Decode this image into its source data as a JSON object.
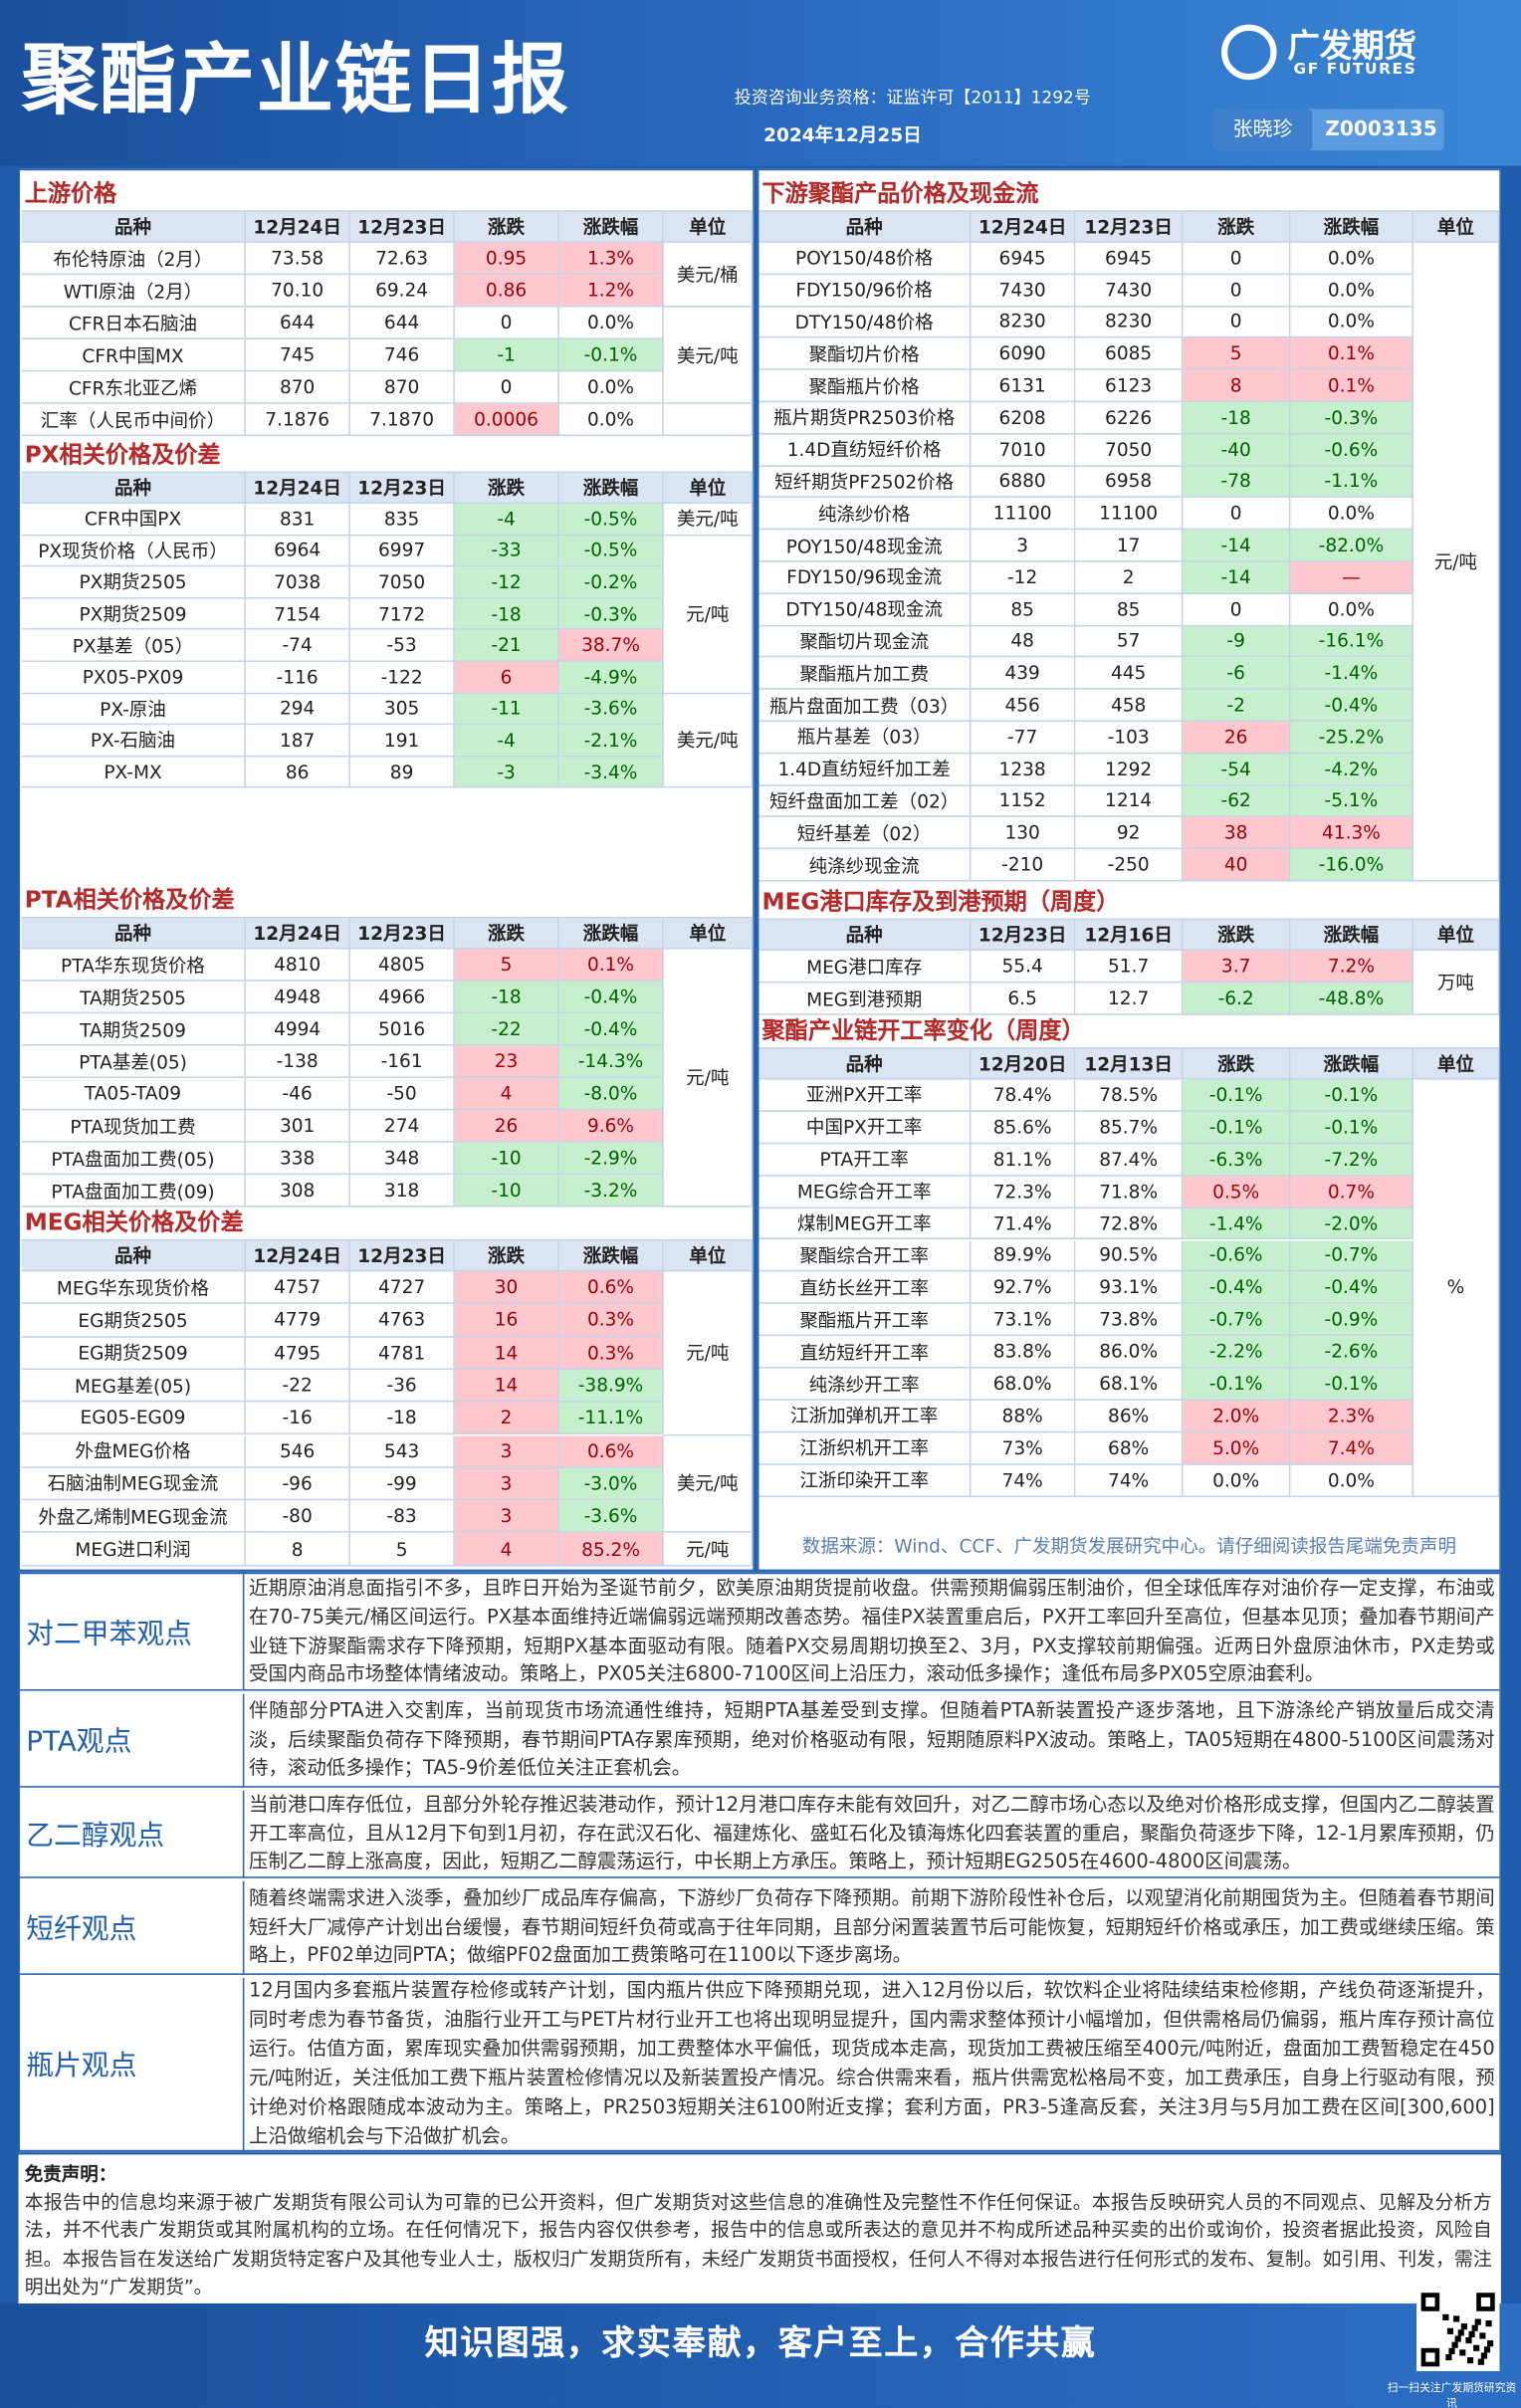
{
  "header": {
    "title": "聚酯产业链日报",
    "license": "投资咨询业务资格：证监许可【2011】1292号",
    "date": "2024年12月25日",
    "analyst": "张晓珍",
    "analyst_id": "Z0003135",
    "logo": "广发期货",
    "logo_en": "GF FUTURES"
  },
  "left": [
    {
      "title": "上游价格",
      "header": [
        "品种",
        "12月24日",
        "12月23日",
        "涨跌",
        "涨跌幅",
        "单位"
      ],
      "rows": [
        [
          "布伦特原油（2月）",
          "73.58",
          "72.63",
          "0.95",
          "1.3%"
        ],
        [
          "WTI原油（2月）",
          "70.10",
          "69.24",
          "0.86",
          "1.2%"
        ],
        [
          "CFR日本石脑油",
          "644",
          "644",
          "0",
          "0.0%"
        ],
        [
          "CFR中国MX",
          "745",
          "746",
          "-1",
          "-0.1%"
        ],
        [
          "CFR东北亚乙烯",
          "870",
          "870",
          "0",
          "0.0%"
        ],
        [
          "汇率（人民币中间价）",
          "7.1876",
          "7.1870",
          "0.0006",
          "0.0%"
        ]
      ],
      "units": [
        {
          "text": "美元/桶",
          "span": 2
        },
        {
          "text": "美元/吨",
          "span": 3
        }
      ]
    },
    {
      "title": "PX相关价格及价差",
      "header": [
        "品种",
        "12月24日",
        "12月23日",
        "涨跌",
        "涨跌幅",
        "单位"
      ],
      "rows": [
        [
          "CFR中国PX",
          "831",
          "835",
          "-4",
          "-0.5%"
        ],
        [
          "PX现货价格（人民币）",
          "6964",
          "6997",
          "-33",
          "-0.5%"
        ],
        [
          "PX期货2505",
          "7038",
          "7050",
          "-12",
          "-0.2%"
        ],
        [
          "PX期货2509",
          "7154",
          "7172",
          "-18",
          "-0.3%"
        ],
        [
          "PX基差（05）",
          "-74",
          "-53",
          "-21",
          "38.7%"
        ],
        [
          "PX05-PX09",
          "-116",
          "-122",
          "6",
          "-4.9%"
        ],
        [
          "PX-原油",
          "294",
          "305",
          "-11",
          "-3.6%"
        ],
        [
          "PX-石脑油",
          "187",
          "191",
          "-4",
          "-2.1%"
        ],
        [
          "PX-MX",
          "86",
          "89",
          "-3",
          "-3.4%"
        ]
      ],
      "units": [
        {
          "text": "美元/吨",
          "span": 1
        },
        {
          "text": "元/吨",
          "span": 5
        },
        {
          "text": "美元/吨",
          "span": 3
        }
      ]
    },
    {
      "title": "PTA相关价格及价差",
      "header": [
        "品种",
        "12月24日",
        "12月23日",
        "涨跌",
        "涨跌幅",
        "单位"
      ],
      "rows": [
        [
          "PTA华东现货价格",
          "4810",
          "4805",
          "5",
          "0.1%"
        ],
        [
          "TA期货2505",
          "4948",
          "4966",
          "-18",
          "-0.4%"
        ],
        [
          "TA期货2509",
          "4994",
          "5016",
          "-22",
          "-0.4%"
        ],
        [
          "PTA基差(05)",
          "-138",
          "-161",
          "23",
          "-14.3%"
        ],
        [
          "TA05-TA09",
          "-46",
          "-50",
          "4",
          "-8.0%"
        ],
        [
          "PTA现货加工费",
          "301",
          "274",
          "26",
          "9.6%"
        ],
        [
          "PTA盘面加工费(05)",
          "338",
          "348",
          "-10",
          "-2.9%"
        ],
        [
          "PTA盘面加工费(09)",
          "308",
          "318",
          "-10",
          "-3.2%"
        ]
      ],
      "units": [
        {
          "text": "元/吨",
          "span": 8
        }
      ]
    },
    {
      "title": "MEG相关价格及价差",
      "header": [
        "品种",
        "12月24日",
        "12月23日",
        "涨跌",
        "涨跌幅",
        "单位"
      ],
      "rows": [
        [
          "MEG华东现货价格",
          "4757",
          "4727",
          "30",
          "0.6%"
        ],
        [
          "EG期货2505",
          "4779",
          "4763",
          "16",
          "0.3%"
        ],
        [
          "EG期货2509",
          "4795",
          "4781",
          "14",
          "0.3%"
        ],
        [
          "MEG基差(05)",
          "-22",
          "-36",
          "14",
          "-38.9%"
        ],
        [
          "EG05-EG09",
          "-16",
          "-18",
          "2",
          "-11.1%"
        ],
        [
          "外盘MEG价格",
          "546",
          "543",
          "3",
          "0.6%"
        ],
        [
          "石脑油制MEG现金流",
          "-96",
          "-99",
          "3",
          "-3.0%"
        ],
        [
          "外盘乙烯制MEG现金流",
          "-80",
          "-83",
          "3",
          "-3.6%"
        ],
        [
          "MEG进口利润",
          "8",
          "5",
          "4",
          "85.2%"
        ]
      ],
      "units": [
        {
          "text": "元/吨",
          "span": 5
        },
        {
          "text": "美元/吨",
          "span": 3
        },
        {
          "text": "元/吨",
          "span": 1
        }
      ]
    }
  ],
  "right": [
    {
      "title": "下游聚酯产品价格及现金流",
      "header": [
        "品种",
        "12月24日",
        "12月23日",
        "涨跌",
        "涨跌幅",
        "单位"
      ],
      "rows": [
        [
          "POY150/48价格",
          "6945",
          "6945",
          "0",
          "0.0%"
        ],
        [
          "FDY150/96价格",
          "7430",
          "7430",
          "0",
          "0.0%"
        ],
        [
          "DTY150/48价格",
          "8230",
          "8230",
          "0",
          "0.0%"
        ],
        [
          "聚酯切片价格",
          "6090",
          "6085",
          "5",
          "0.1%"
        ],
        [
          "聚酯瓶片价格",
          "6131",
          "6123",
          "8",
          "0.1%"
        ],
        [
          "瓶片期货PR2503价格",
          "6208",
          "6226",
          "-18",
          "-0.3%"
        ],
        [
          "1.4D直纺短纤价格",
          "7010",
          "7050",
          "-40",
          "-0.6%"
        ],
        [
          "短纤期货PF2502价格",
          "6880",
          "6958",
          "-78",
          "-1.1%"
        ],
        [
          "纯涤纱价格",
          "11100",
          "11100",
          "0",
          "0.0%"
        ],
        [
          "POY150/48现金流",
          "3",
          "17",
          "-14",
          "-82.0%"
        ],
        [
          "FDY150/96现金流",
          "-12",
          "2",
          "-14",
          "—"
        ],
        [
          "DTY150/48现金流",
          "85",
          "85",
          "0",
          "0.0%"
        ],
        [
          "聚酯切片现金流",
          "48",
          "57",
          "-9",
          "-16.1%"
        ],
        [
          "聚酯瓶片加工费",
          "439",
          "445",
          "-6",
          "-1.4%"
        ],
        [
          "瓶片盘面加工费（03）",
          "456",
          "458",
          "-2",
          "-0.4%"
        ],
        [
          "瓶片基差（03）",
          "-77",
          "-103",
          "26",
          "-25.2%"
        ],
        [
          "1.4D直纺短纤加工差",
          "1238",
          "1292",
          "-54",
          "-4.2%"
        ],
        [
          "短纤盘面加工差（02）",
          "1152",
          "1214",
          "-62",
          "-5.1%"
        ],
        [
          "短纤基差（02）",
          "130",
          "92",
          "38",
          "41.3%"
        ],
        [
          "纯涤纱现金流",
          "-210",
          "-250",
          "40",
          "-16.0%"
        ]
      ],
      "units": [
        {
          "text": "元/吨",
          "span": 20
        }
      ]
    },
    {
      "title": "MEG港口库存及到港预期（周度）",
      "header": [
        "品种",
        "12月23日",
        "12月16日",
        "涨跌",
        "涨跌幅",
        "单位"
      ],
      "rows": [
        [
          "MEG港口库存",
          "55.4",
          "51.7",
          "3.7",
          "7.2%"
        ],
        [
          "MEG到港预期",
          "6.5",
          "12.7",
          "-6.2",
          "-48.8%"
        ]
      ],
      "units": [
        {
          "text": "万吨",
          "span": 2
        }
      ]
    },
    {
      "title": "聚酯产业链开工率变化（周度）",
      "header": [
        "品种",
        "12月20日",
        "12月13日",
        "涨跌",
        "涨跌幅",
        "单位"
      ],
      "rows": [
        [
          "亚洲PX开工率",
          "78.4%",
          "78.5%",
          "-0.1%",
          "-0.1%"
        ],
        [
          "中国PX开工率",
          "85.6%",
          "85.7%",
          "-0.1%",
          "-0.1%"
        ],
        [
          "PTA开工率",
          "81.1%",
          "87.4%",
          "-6.3%",
          "-7.2%"
        ],
        [
          "MEG综合开工率",
          "72.3%",
          "71.8%",
          "0.5%",
          "0.7%"
        ],
        [
          "煤制MEG开工率",
          "71.4%",
          "72.8%",
          "-1.4%",
          "-2.0%"
        ],
        [
          "聚酯综合开工率",
          "89.9%",
          "90.5%",
          "-0.6%",
          "-0.7%"
        ],
        [
          "直纺长丝开工率",
          "92.7%",
          "93.1%",
          "-0.4%",
          "-0.4%"
        ],
        [
          "聚酯瓶片开工率",
          "73.1%",
          "73.8%",
          "-0.7%",
          "-0.9%"
        ],
        [
          "直纺短纤开工率",
          "83.8%",
          "86.0%",
          "-2.2%",
          "-2.6%"
        ],
        [
          "纯涤纱开工率",
          "68.0%",
          "68.1%",
          "-0.1%",
          "-0.1%"
        ],
        [
          "江浙加弹机开工率",
          "88%",
          "86%",
          "2.0%",
          "2.3%"
        ],
        [
          "江浙织机开工率",
          "73%",
          "68%",
          "5.0%",
          "7.4%"
        ],
        [
          "江浙印染开工率",
          "74%",
          "74%",
          "0.0%",
          "0.0%"
        ]
      ],
      "units": [
        {
          "text": "%",
          "span": 13
        }
      ]
    }
  ],
  "source": "数据来源：Wind、CCF、广发期货发展研究中心。请仔细阅读报告尾端免责声明",
  "views": [
    {
      "label": "对二甲苯观点",
      "text": "近期原油消息面指引不多，且昨日开始为圣诞节前夕，欧美原油期货提前收盘。供需预期偏弱压制油价，但全球低库存对油价存一定支撑，布油或在70-75美元/桶区间运行。PX基本面维持近端偏弱远端预期改善态势。福佳PX装置重启后，PX开工率回升至高位，但基本见顶；叠加春节期间产业链下游聚酯需求存下降预期，短期PX基本面驱动有限。随着PX交易周期切换至2、3月，PX支撑较前期偏强。近两日外盘原油休市，PX走势或受国内商品市场整体情绪波动。策略上，PX05关注6800-7100区间上沿压力，滚动低多操作；逢低布局多PX05空原油套利。"
    },
    {
      "label": "PTA观点",
      "text": "伴随部分PTA进入交割库，当前现货市场流通性维持，短期PTA基差受到支撑。但随着PTA新装置投产逐步落地，且下游涤纶产销放量后成交清淡，后续聚酯负荷存下降预期，春节期间PTA存累库预期，绝对价格驱动有限，短期随原料PX波动。策略上，TA05短期在4800-5100区间震荡对待，滚动低多操作；TA5-9价差低位关注正套机会。"
    },
    {
      "label": "乙二醇观点",
      "text": "当前港口库存低位，且部分外轮存推迟装港动作，预计12月港口库存未能有效回升，对乙二醇市场心态以及绝对价格形成支撑，但国内乙二醇装置开工率高位，且从12月下旬到1月初，存在武汉石化、福建炼化、盛虹石化及镇海炼化四套装置的重启，聚酯负荷逐步下降，12-1月累库预期，仍压制乙二醇上涨高度，因此，短期乙二醇震荡运行，中长期上方承压。策略上，预计短期EG2505在4600-4800区间震荡。"
    },
    {
      "label": "短纤观点",
      "text": "随着终端需求进入淡季，叠加纱厂成品库存偏高，下游纱厂负荷存下降预期。前期下游阶段性补仓后，以观望消化前期囤货为主。但随着春节期间短纤大厂减停产计划出台缓慢，春节期间短纤负荷或高于往年同期，且部分闲置装置节后可能恢复，短期短纤价格或承压，加工费或继续压缩。策略上，PF02单边同PTA；做缩PF02盘面加工费策略可在1100以下逐步离场。"
    },
    {
      "label": "瓶片观点",
      "text": "12月国内多套瓶片装置存检修或转产计划，国内瓶片供应下降预期兑现，进入12月份以后，软饮料企业将陆续结束检修期，产线负荷逐渐提升，同时考虑为春节备货，油脂行业开工与PET片材行业开工也将出现明显提升，国内需求整体预计小幅增加，但供需格局仍偏弱，瓶片库存预计高位运行。估值方面，累库现实叠加供需弱预期，加工费整体水平偏低，现货成本走高，现货加工费被压缩至400元/吨附近，盘面加工费暂稳定在450元/吨附近，关注低加工费下瓶片装置检修情况以及新装置投产情况。综合供需来看，瓶片供需宽松格局不变，加工费承压，自身上行驱动有限，预计绝对价格跟随成本波动为主。策略上，PR2503短期关注6100附近支撑；套利方面，PR3-5逢高反套，关注3月与5月加工费在区间[300,600]上沿做缩机会与下沿做扩机会。"
    }
  ],
  "disclaimer": {
    "title": "免责声明：",
    "text": "本报告中的信息均来源于被广发期货有限公司认为可靠的已公开资料，但广发期货对这些信息的准确性及完整性不作任何保证。本报告反映研究人员的不同观点、见解及分析方法，并不代表广发期货或其附属机构的立场。在任何情况下，报告内容仅供参考，报告中的信息或所表达的意见并不构成所述品种买卖的出价或询价，投资者据此投资，风险自担。本报告旨在发送给广发期货特定客户及其他专业人士，版权归广发期货所有，未经广发期货书面授权，任何人不得对本报告进行任何形式的发布、复制。如引用、刊发，需注明出处为“广发期货”。"
  },
  "footer": {
    "slogan": "知识图强，求实奉献，客户至上，合作共赢",
    "qr_caption": "扫一扫关注广发期货研究资讯"
  }
}
